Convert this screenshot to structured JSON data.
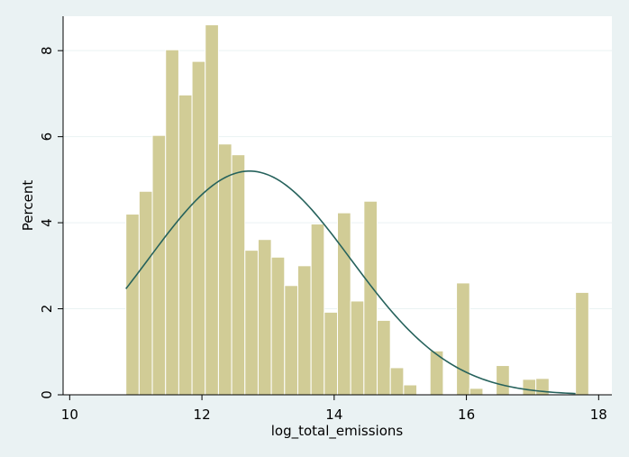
{
  "chart_data": {
    "type": "bar",
    "xlabel": "log_total_emissions",
    "ylabel": "Percent",
    "xlim": [
      9.9,
      18.2
    ],
    "ylim": [
      0,
      8.8
    ],
    "x_ticks": [
      10,
      12,
      14,
      16,
      18
    ],
    "y_ticks": [
      0,
      2,
      4,
      6,
      8
    ],
    "grid": "horizontal",
    "bin_width": 0.2,
    "bins": [
      {
        "start": 10.85,
        "value": 4.2
      },
      {
        "start": 11.05,
        "value": 4.73
      },
      {
        "start": 11.25,
        "value": 6.03
      },
      {
        "start": 11.45,
        "value": 8.02
      },
      {
        "start": 11.65,
        "value": 6.97
      },
      {
        "start": 11.85,
        "value": 7.75
      },
      {
        "start": 12.05,
        "value": 8.6
      },
      {
        "start": 12.25,
        "value": 5.83
      },
      {
        "start": 12.45,
        "value": 5.58
      },
      {
        "start": 12.65,
        "value": 3.36
      },
      {
        "start": 12.85,
        "value": 3.61
      },
      {
        "start": 13.05,
        "value": 3.2
      },
      {
        "start": 13.25,
        "value": 2.54
      },
      {
        "start": 13.45,
        "value": 3.0
      },
      {
        "start": 13.65,
        "value": 3.97
      },
      {
        "start": 13.85,
        "value": 1.92
      },
      {
        "start": 14.05,
        "value": 4.23
      },
      {
        "start": 14.25,
        "value": 2.18
      },
      {
        "start": 14.45,
        "value": 4.5
      },
      {
        "start": 14.65,
        "value": 1.73
      },
      {
        "start": 14.85,
        "value": 0.63
      },
      {
        "start": 15.05,
        "value": 0.23
      },
      {
        "start": 15.25,
        "value": 0.0
      },
      {
        "start": 15.45,
        "value": 1.02
      },
      {
        "start": 15.65,
        "value": 0.0
      },
      {
        "start": 15.85,
        "value": 2.6
      },
      {
        "start": 16.05,
        "value": 0.15
      },
      {
        "start": 16.25,
        "value": 0.0
      },
      {
        "start": 16.45,
        "value": 0.68
      },
      {
        "start": 16.65,
        "value": 0.0
      },
      {
        "start": 16.85,
        "value": 0.36
      },
      {
        "start": 17.05,
        "value": 0.38
      },
      {
        "start": 17.25,
        "value": 0.0
      },
      {
        "start": 17.45,
        "value": 0.0
      },
      {
        "start": 17.65,
        "value": 2.38
      }
    ],
    "overlay": {
      "type": "normal-density-line",
      "mean": 12.72,
      "peak": 5.2,
      "sd": 1.53,
      "x_range": [
        10.85,
        17.65
      ]
    },
    "colors": {
      "bar_fill": "#d1cc96",
      "bar_stroke": "#ffffff",
      "line": "#26625c",
      "plot_bg": "#ffffff",
      "outer_bg": "#eaf2f3",
      "grid": "#eaf2f3"
    }
  }
}
